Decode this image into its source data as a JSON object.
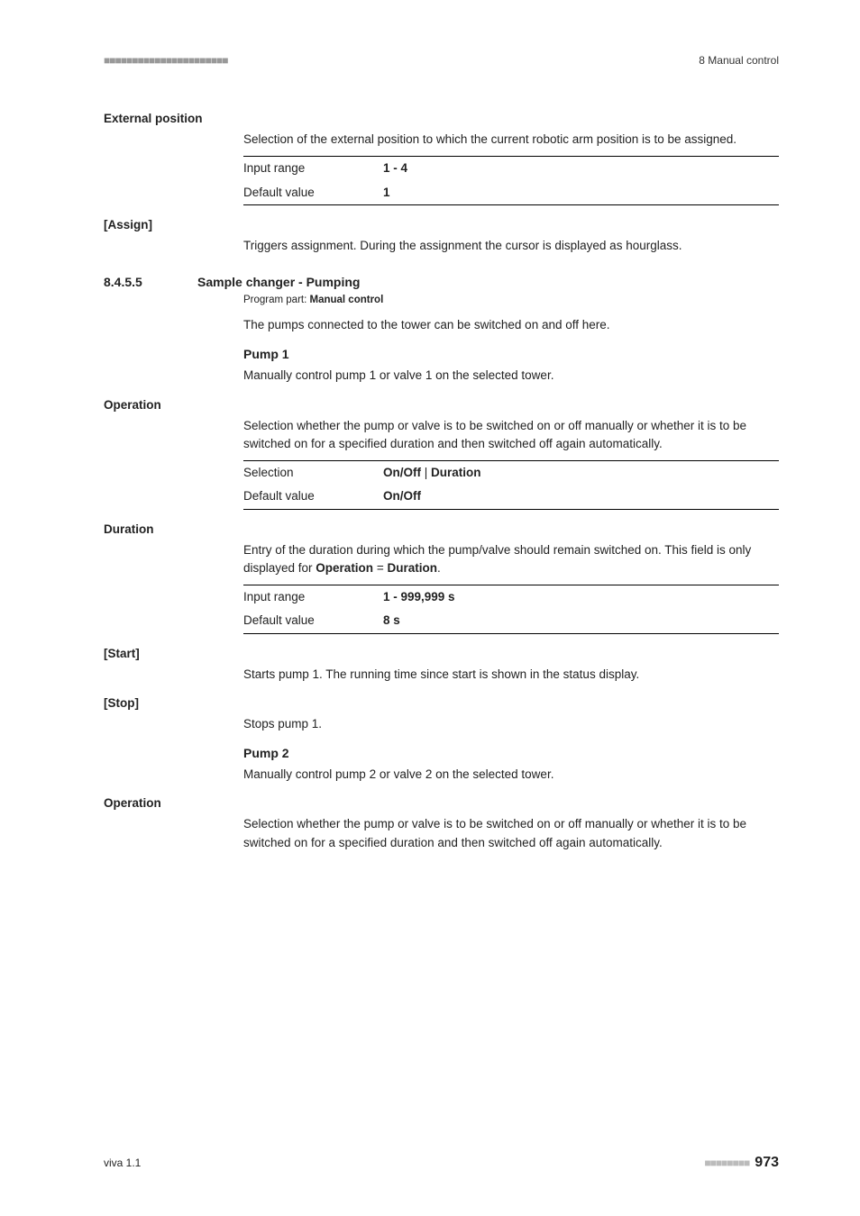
{
  "header": {
    "dots": "■■■■■■■■■■■■■■■■■■■■■■",
    "right": "8 Manual control"
  },
  "externalPosition": {
    "label": "External position",
    "desc": "Selection of the external position to which the current robotic arm position is to be assigned.",
    "inputRange": {
      "key": "Input range",
      "val": "1 - 4"
    },
    "defaultVal": {
      "key": "Default value",
      "val": "1"
    }
  },
  "assign": {
    "label": "[Assign]",
    "desc": "Triggers assignment. During the assignment the cursor is displayed as hourglass."
  },
  "section": {
    "num": "8.4.5.5",
    "title": "Sample changer - Pumping",
    "programPartLabel": "Program part: ",
    "programPartVal": "Manual control",
    "intro": "The pumps connected to the tower can be switched on and off here."
  },
  "pump1": {
    "head": "Pump 1",
    "desc": "Manually control pump 1 or valve 1 on the selected tower."
  },
  "operation1": {
    "label": "Operation",
    "desc": "Selection whether the pump or valve is to be switched on or off manually or whether it is to be switched on for a specified duration and then switched off again automatically.",
    "selection": {
      "key": "Selection",
      "val1": "On/Off",
      "sep": " | ",
      "val2": "Duration"
    },
    "defaultVal": {
      "key": "Default value",
      "val": "On/Off"
    }
  },
  "duration": {
    "label": "Duration",
    "desc1": "Entry of the duration during which the pump/valve should remain switched on. This field is only displayed for ",
    "descB1": "Operation",
    "descEq": " = ",
    "descB2": "Duration",
    "descEnd": ".",
    "inputRange": {
      "key": "Input range",
      "val": "1 - 999,999 s"
    },
    "defaultVal": {
      "key": "Default value",
      "val": "8 s"
    }
  },
  "start": {
    "label": "[Start]",
    "desc": "Starts pump 1. The running time since start is shown in the status display."
  },
  "stop": {
    "label": "[Stop]",
    "desc": "Stops pump 1."
  },
  "pump2": {
    "head": "Pump 2",
    "desc": "Manually control pump 2 or valve 2 on the selected tower."
  },
  "operation2": {
    "label": "Operation",
    "desc": "Selection whether the pump or valve is to be switched on or off manually or whether it is to be switched on for a specified duration and then switched off again automatically."
  },
  "footer": {
    "left": "viva 1.1",
    "dots": "■■■■■■■■",
    "page": "973"
  }
}
